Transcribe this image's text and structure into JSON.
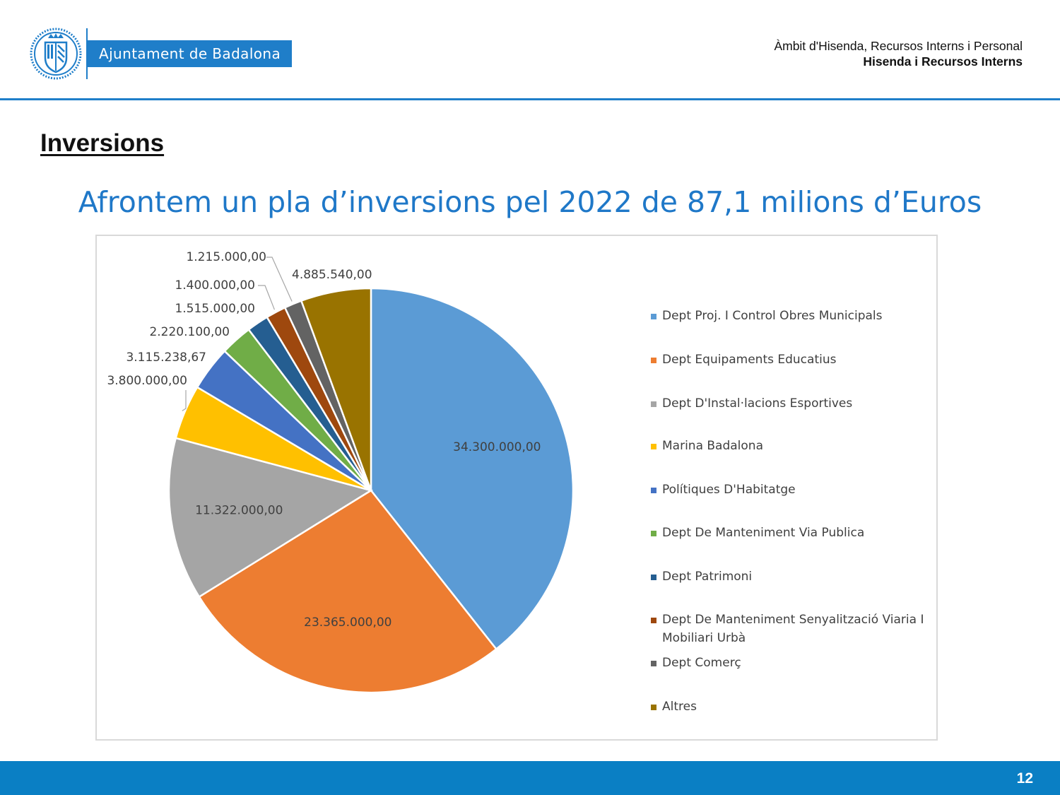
{
  "header": {
    "org_name": "Ajuntament de Badalona",
    "dept_line1": "Àmbit d'Hisenda, Recursos Interns i Personal",
    "dept_line2": "Hisenda i Recursos Interns"
  },
  "section_title": "Inversions",
  "headline": "Afrontem un pla d’inversions pel 2022 de 87,1 milions d’Euros",
  "chart_data": {
    "type": "pie",
    "title": "",
    "categories": [
      "Dept Proj. I Control Obres Municipals",
      "Dept Equipaments Educatius",
      "Dept D'Instal·lacions Esportives",
      "Marina Badalona",
      "Polítiques D'Habitatge",
      "Dept De Manteniment Via Publica",
      "Dept Patrimoni",
      "Dept De Manteniment Senyalització Viaria I Mobiliari Urbà",
      "Dept Comerç",
      "Altres"
    ],
    "values": [
      34300000,
      23365000,
      11322000,
      3800000,
      3115238.67,
      2220100,
      1515000,
      1400000,
      1215000,
      4885540
    ],
    "value_labels": [
      "34.300.000,00",
      "23.365.000,00",
      "11.322.000,00",
      "3.800.000,00",
      "3.115.238,67",
      "2.220.100,00",
      "1.515.000,00",
      "1.400.000,00",
      "1.215.000,00",
      "4.885.540,00"
    ],
    "colors": [
      "#5b9bd5",
      "#ed7d31",
      "#a5a5a5",
      "#ffc000",
      "#4472c4",
      "#70ad47",
      "#255e91",
      "#9e480e",
      "#636363",
      "#997300"
    ],
    "legend_position": "right",
    "start_angle_deg": 0,
    "direction": "clockwise"
  },
  "page_number": "12"
}
